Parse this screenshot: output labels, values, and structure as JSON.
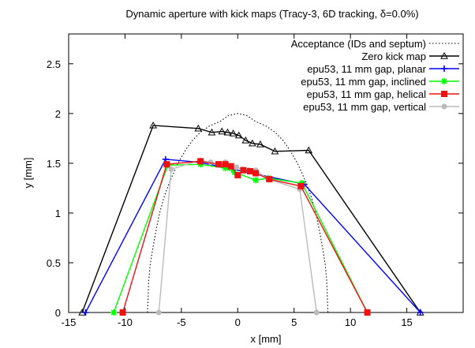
{
  "chart_data": {
    "type": "line",
    "title": "Dynamic aperture with kick maps (Tracy-3, 6D tracking, δ=0.0%)",
    "xlabel": "x [mm]",
    "ylabel": "y [mm]",
    "xlim": [
      -15,
      20
    ],
    "ylim": [
      0,
      2.8
    ],
    "xticks": [
      -15,
      -10,
      -5,
      0,
      5,
      10,
      15
    ],
    "yticks": [
      0,
      0.5,
      1,
      1.5,
      2,
      2.5
    ],
    "xtick_labels": [
      "-15",
      "-10",
      "-5",
      "0",
      "5",
      "10",
      "15"
    ],
    "ytick_labels": [
      "0",
      "0.5",
      "1",
      "1.5",
      "2",
      "2.5"
    ],
    "grid": false,
    "legend_position": "top-right",
    "series": [
      {
        "name": "Acceptance (IDs and septum)",
        "style": "dotted",
        "color": "#000000",
        "marker": "none",
        "x": [
          -8.0,
          -7.9,
          -7.76,
          -7.6,
          -7.3,
          -6.93,
          -6.5,
          -6.0,
          -5.3,
          -4.6,
          -4.0,
          -3.3,
          -2.5,
          -1.6,
          -0.8,
          0.0,
          0.8,
          1.6,
          2.5,
          3.3,
          4.0,
          4.6,
          5.3,
          6.0,
          6.5,
          6.93,
          7.3,
          7.6,
          7.76,
          7.9,
          8.0
        ],
        "y": [
          0.0,
          0.313,
          0.484,
          0.6,
          0.795,
          1.0,
          1.173,
          1.323,
          1.5,
          1.637,
          1.732,
          1.813,
          1.875,
          1.919,
          1.98,
          2.0,
          1.98,
          1.919,
          1.875,
          1.813,
          1.732,
          1.637,
          1.5,
          1.323,
          1.173,
          1.0,
          0.795,
          0.6,
          0.484,
          0.313,
          0.0
        ]
      },
      {
        "name": "Zero kick map",
        "style": "solid",
        "color": "#000000",
        "marker": "triangle-open",
        "x": [
          -13.8,
          -7.5,
          -3.5,
          -2.3,
          -1.4,
          -0.9,
          -0.4,
          0.1,
          0.7,
          1.3,
          2.0,
          3.3,
          6.3,
          16.2
        ],
        "y": [
          0.0,
          1.88,
          1.85,
          1.81,
          1.82,
          1.81,
          1.8,
          1.78,
          1.73,
          1.7,
          1.69,
          1.62,
          1.63,
          0.0
        ]
      },
      {
        "name": "epu53, 11 mm gap, planar",
        "style": "solid",
        "color": "#0000ff",
        "marker": "plus",
        "x": [
          -13.5,
          -6.4,
          -3.4,
          5.9,
          16.2
        ],
        "y": [
          0.0,
          1.54,
          1.51,
          1.29,
          0.0
        ]
      },
      {
        "name": "epu53, 11 mm gap, inclined",
        "style": "solid",
        "color": "#00ff00",
        "marker": "star",
        "x": [
          -11.0,
          -6.2,
          -3.3,
          -1.1,
          -0.3,
          1.6,
          2.7,
          5.7,
          11.5
        ],
        "y": [
          0.0,
          1.48,
          1.49,
          1.45,
          1.41,
          1.33,
          1.35,
          1.3,
          0.0
        ]
      },
      {
        "name": "epu53, 11 mm gap, helical",
        "style": "solid",
        "color": "#ee1111",
        "marker": "square",
        "x": [
          -10.2,
          -6.3,
          -3.3,
          -1.7,
          -1.1,
          -0.6,
          0.0,
          0.5,
          1.1,
          1.6,
          2.8,
          5.6,
          11.5
        ],
        "y": [
          0.0,
          1.49,
          1.52,
          1.49,
          1.49,
          1.47,
          1.38,
          1.43,
          1.42,
          1.4,
          1.34,
          1.27,
          0.0
        ]
      },
      {
        "name": "epu53, 11 mm gap, vertical",
        "style": "solid",
        "color": "#bbbbbb",
        "marker": "circle",
        "x": [
          -7.0,
          -5.9,
          -3.3,
          -2.4,
          -1.6,
          -1.1,
          -0.6,
          -0.1,
          0.4,
          1.0,
          1.6,
          2.7,
          5.5,
          7.0
        ],
        "y": [
          0.0,
          1.44,
          1.53,
          1.51,
          1.48,
          1.51,
          1.47,
          1.46,
          1.44,
          1.43,
          1.43,
          1.34,
          1.24,
          0.0
        ]
      }
    ]
  }
}
